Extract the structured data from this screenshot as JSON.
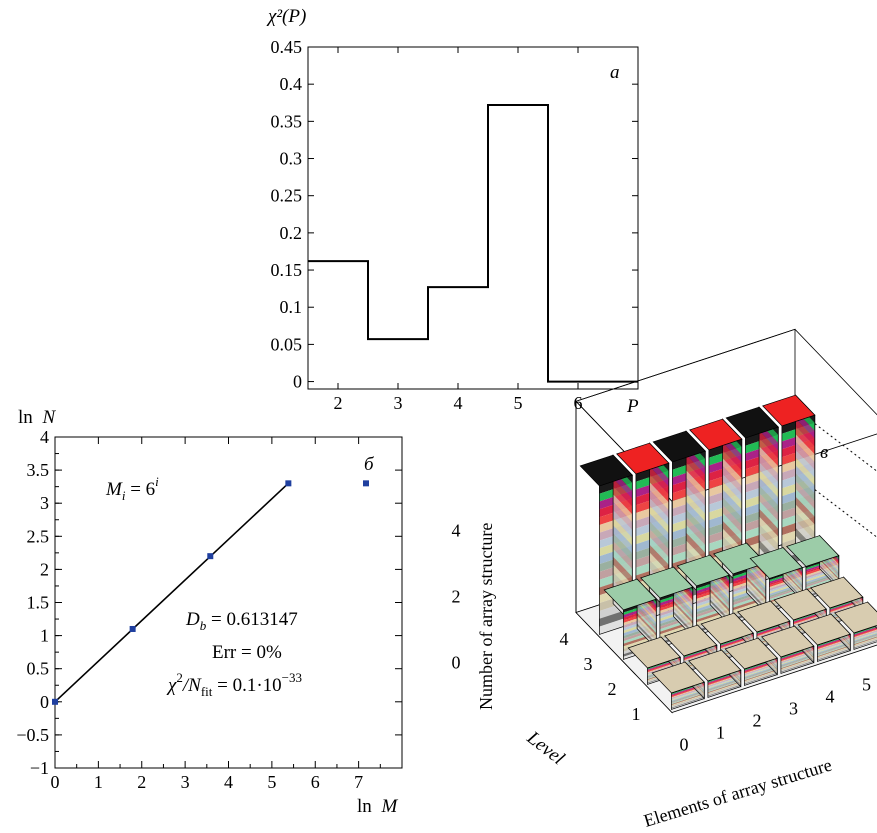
{
  "chart_data": [
    {
      "panel_label": "a",
      "type": "step",
      "ylabel": "χ²(P)",
      "xlabel": "P",
      "x_ticks": [
        "2",
        "3",
        "4",
        "5",
        "6"
      ],
      "y_ticks": [
        "0",
        "0.05",
        "0.1",
        "0.15",
        "0.2",
        "0.25",
        "0.3",
        "0.35",
        "0.4",
        "0.45"
      ],
      "xlim": [
        1.5,
        7.0
      ],
      "ylim": [
        -0.01,
        0.45
      ],
      "points": [
        {
          "x": 2,
          "y": 0.162
        },
        {
          "x": 3,
          "y": 0.057
        },
        {
          "x": 4,
          "y": 0.127
        },
        {
          "x": 5,
          "y": 0.372
        },
        {
          "x": 6,
          "y": 0.0
        }
      ]
    },
    {
      "panel_label": "б",
      "type": "scatter",
      "xlabel_name": "ln",
      "xlabel_var": "M",
      "ylabel_name": "ln",
      "ylabel_var": "N",
      "x_ticks": [
        "0",
        "1",
        "2",
        "3",
        "4",
        "5",
        "6",
        "7"
      ],
      "y_ticks": [
        "−1",
        "−0.5",
        "0",
        "0.5",
        "1",
        "1.5",
        "2",
        "2.5",
        "3",
        "3.5",
        "4"
      ],
      "xlim": [
        0,
        8
      ],
      "ylim": [
        -1,
        4
      ],
      "points": [
        {
          "x": 0.0,
          "y": 0.0
        },
        {
          "x": 1.79,
          "y": 1.1
        },
        {
          "x": 3.58,
          "y": 2.2
        },
        {
          "x": 5.38,
          "y": 3.3
        },
        {
          "x": 7.17,
          "y": 3.3
        }
      ],
      "fit_line": [
        {
          "x": 0.0,
          "y": 0.0
        },
        {
          "x": 5.38,
          "y": 3.3
        }
      ],
      "annotations": {
        "mi_lhs": "M",
        "mi_sub": "i",
        "mi_rhs": " = 6",
        "mi_sup": "i",
        "db_lhs": "D",
        "db_sub": "b",
        "db_rhs": " = 0.613147",
        "err": "Err = 0%",
        "chi_lhs": "χ",
        "chi_sup": "2",
        "chi_mid": "/N",
        "chi_sub": "fit",
        "chi_rhs": " = 0.1·10",
        "chi_exp": "−33"
      }
    },
    {
      "panel_label": "в",
      "type": "bar3d",
      "xlabel": "Elements of array structure",
      "ylabel": "Level",
      "zlabel": "Number of array structure",
      "x_ticks": [
        "0",
        "1",
        "2",
        "3",
        "4",
        "5"
      ],
      "y_ticks": [
        "1",
        "2",
        "3",
        "4"
      ],
      "z_ticks": [
        "0",
        "2",
        "4"
      ],
      "z_max": 4.8,
      "rows": [
        {
          "level": 4,
          "values": [
            4.5,
            4.5,
            4.5,
            4.5,
            4.5,
            4.5
          ]
        },
        {
          "level": 3,
          "values": [
            1.5,
            1.5,
            1.5,
            1.5,
            1.0,
            1.0
          ]
        },
        {
          "level": 2,
          "values": [
            0.5,
            0.5,
            0.5,
            0.5,
            0.5,
            0.5
          ]
        },
        {
          "level": 1,
          "values": [
            0.5,
            0.5,
            0.5,
            0.5,
            0.5,
            0.5
          ]
        }
      ],
      "top_colors": [
        "#111111",
        "#ee2222",
        "#111111",
        "#ee2222",
        "#111111",
        "#ee2222"
      ],
      "band_colors": [
        "#1a1a1a",
        "#22bb55",
        "#aa2288",
        "#dd2244",
        "#ee4444",
        "#e8c8a0",
        "#c8a8b8",
        "#b8c8d8",
        "#d8d8a0",
        "#a0b8d0",
        "#9ab0a0",
        "#c0a0a0",
        "#a8d8c0",
        "#b07060",
        "#e0d8b0",
        "#c8c0a8",
        "#d0d0d0",
        "#707070",
        "#e0e0e0"
      ]
    }
  ]
}
